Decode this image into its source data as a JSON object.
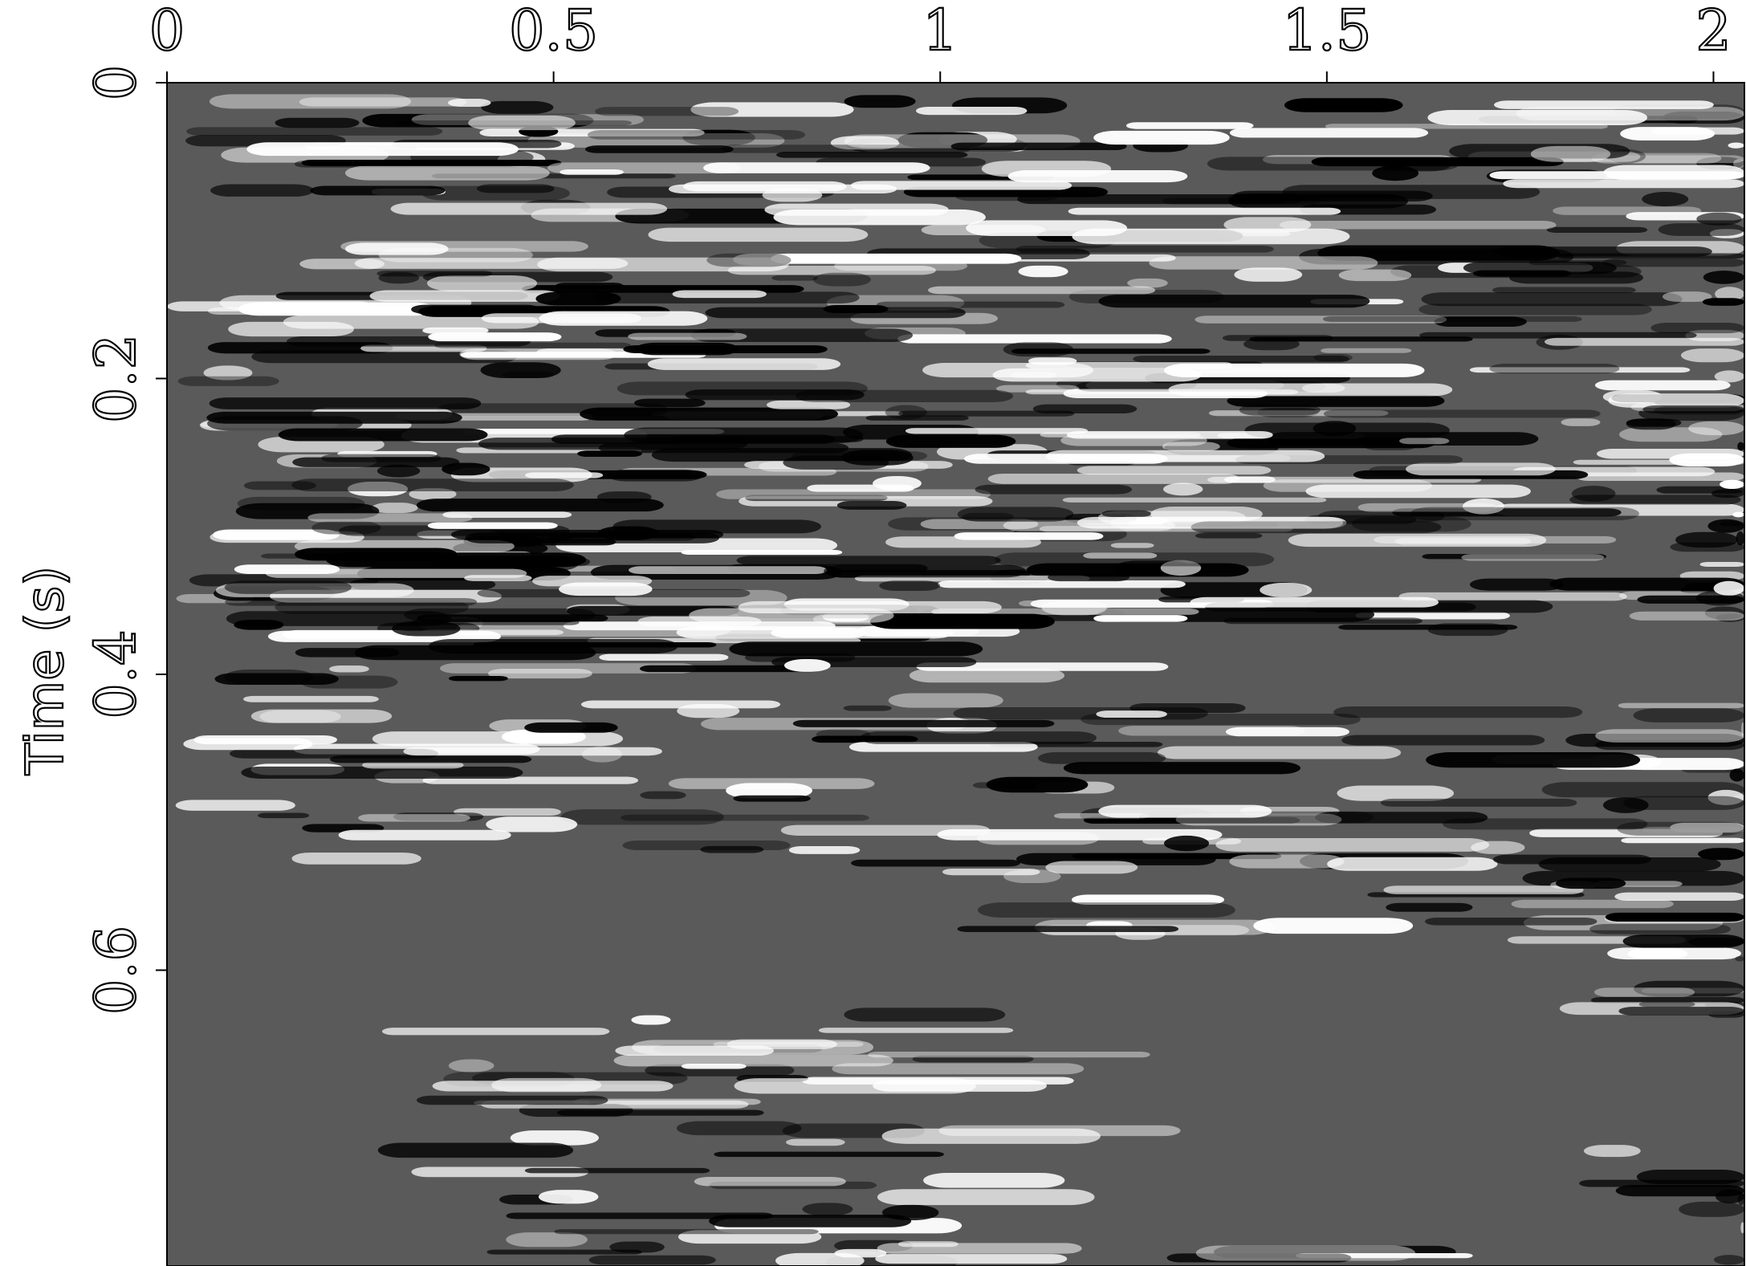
{
  "chart_data": {
    "type": "heatmap",
    "title": "",
    "xlabel": "",
    "ylabel": "Time (s)",
    "xlim": [
      0,
      2.04
    ],
    "ylim": [
      0,
      0.8
    ],
    "y_inverted": true,
    "x_axis_position": "top",
    "grid": false,
    "legend": "none",
    "colormap": "gray",
    "background": "#5a5a5a",
    "x_ticks": [
      {
        "value": 0,
        "label": "0"
      },
      {
        "value": 0.5,
        "label": "0.5"
      },
      {
        "value": 1,
        "label": "1"
      },
      {
        "value": 1.5,
        "label": "1.5"
      },
      {
        "value": 2,
        "label": "2"
      }
    ],
    "y_ticks": [
      {
        "value": 0,
        "label": "0"
      },
      {
        "value": 0.2,
        "label": "0.2"
      },
      {
        "value": 0.4,
        "label": "0.4"
      },
      {
        "value": 0.6,
        "label": "0.6"
      }
    ]
  }
}
